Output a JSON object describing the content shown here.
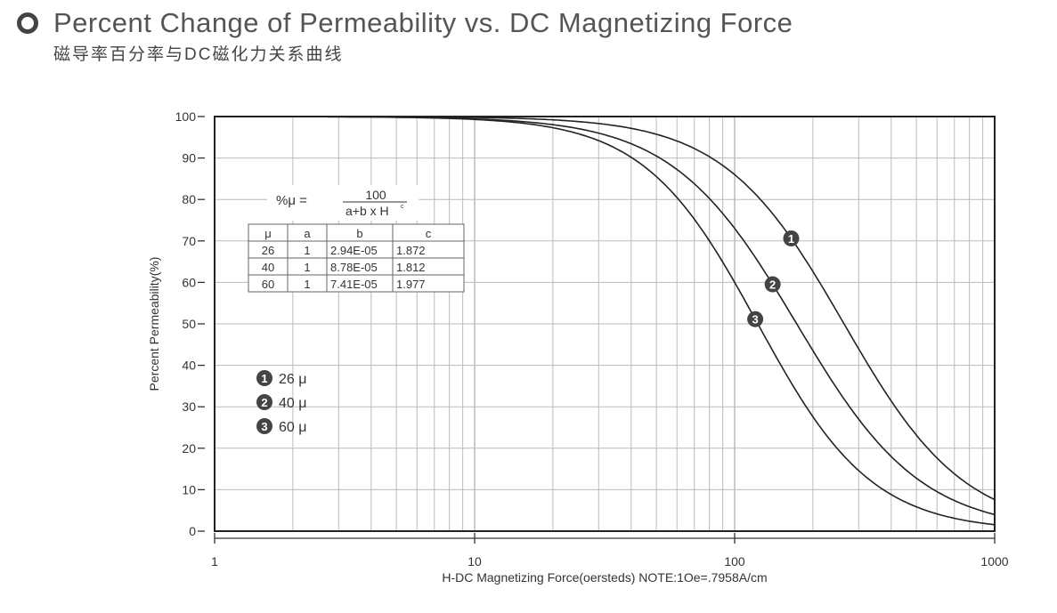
{
  "header": {
    "title": "Percent Change of Permeability vs. DC Magnetizing Force",
    "subtitle": "磁导率百分率与DC磁化力关系曲线"
  },
  "chart_data": {
    "type": "line",
    "xlabel": "H-DC Magnetizing Force(oersteds) NOTE:1Oe=.7958A/cm",
    "ylabel": "Percent Permeability(%)",
    "x_scale": "log",
    "xlim": [
      1,
      1000
    ],
    "ylim": [
      0,
      100
    ],
    "grid": true,
    "x_ticks": [
      "1",
      "10",
      "100",
      "1000"
    ],
    "y_ticks": [
      "100",
      "90",
      "80",
      "70",
      "60",
      "50",
      "40",
      "30",
      "20",
      "10",
      "0"
    ],
    "formula": {
      "lhs": "%μ =",
      "numerator": "100",
      "denominator": "a+b x H",
      "exponent": "c"
    },
    "table": {
      "headers": [
        "μ",
        "a",
        "b",
        "c"
      ],
      "rows": [
        [
          "26",
          "1",
          "2.94E-05",
          "1.872"
        ],
        [
          "40",
          "1",
          "8.78E-05",
          "1.812"
        ],
        [
          "60",
          "1",
          "7.41E-05",
          "1.977"
        ]
      ]
    },
    "series": [
      {
        "name": "26 μ",
        "marker": "1",
        "a": 1,
        "b": 2.94e-05,
        "c": 1.872,
        "label_at_H": 165
      },
      {
        "name": "40 μ",
        "marker": "2",
        "a": 1,
        "b": 8.78e-05,
        "c": 1.812,
        "label_at_H": 140
      },
      {
        "name": "60 μ",
        "marker": "3",
        "a": 1,
        "b": 7.41e-05,
        "c": 1.977,
        "label_at_H": 120
      }
    ],
    "legend_placement": "left-middle",
    "line_color": "#222"
  }
}
